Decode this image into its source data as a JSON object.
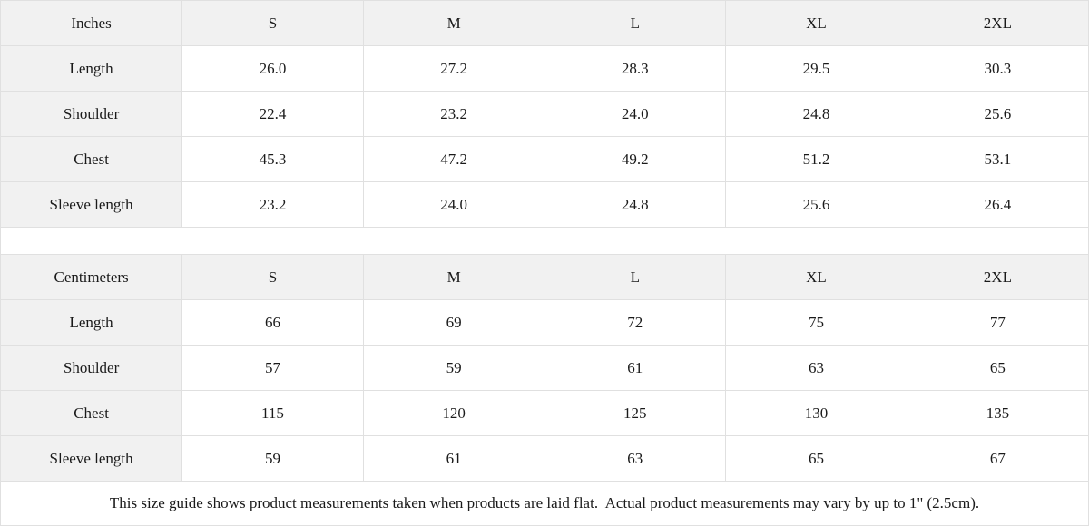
{
  "chart_data": [
    {
      "type": "table",
      "title": "Inches",
      "columns": [
        "Inches",
        "S",
        "M",
        "L",
        "XL",
        "2XL"
      ],
      "rows": [
        {
          "label": "Length",
          "values": [
            "26.0",
            "27.2",
            "28.3",
            "29.5",
            "30.3"
          ]
        },
        {
          "label": "Shoulder",
          "values": [
            "22.4",
            "23.2",
            "24.0",
            "24.8",
            "25.6"
          ]
        },
        {
          "label": "Chest",
          "values": [
            "45.3",
            "47.2",
            "49.2",
            "51.2",
            "53.1"
          ]
        },
        {
          "label": "Sleeve length",
          "values": [
            "23.2",
            "24.0",
            "24.8",
            "25.6",
            "26.4"
          ]
        }
      ]
    },
    {
      "type": "table",
      "title": "Centimeters",
      "columns": [
        "Centimeters",
        "S",
        "M",
        "L",
        "XL",
        "2XL"
      ],
      "rows": [
        {
          "label": "Length",
          "values": [
            "66",
            "69",
            "72",
            "75",
            "77"
          ]
        },
        {
          "label": "Shoulder",
          "values": [
            "57",
            "59",
            "61",
            "63",
            "65"
          ]
        },
        {
          "label": "Chest",
          "values": [
            "115",
            "120",
            "125",
            "130",
            "135"
          ]
        },
        {
          "label": "Sleeve length",
          "values": [
            "59",
            "61",
            "63",
            "65",
            "67"
          ]
        }
      ]
    }
  ],
  "footer": {
    "note": "This size guide shows product measurements taken when products are laid flat.  Actual product measurements may vary by up to 1\" (2.5cm)."
  },
  "colors": {
    "background": "#ffffff",
    "shaded_cell": "#f1f1f1",
    "border": "#e0e0e0",
    "text": "#1a1a1a"
  }
}
